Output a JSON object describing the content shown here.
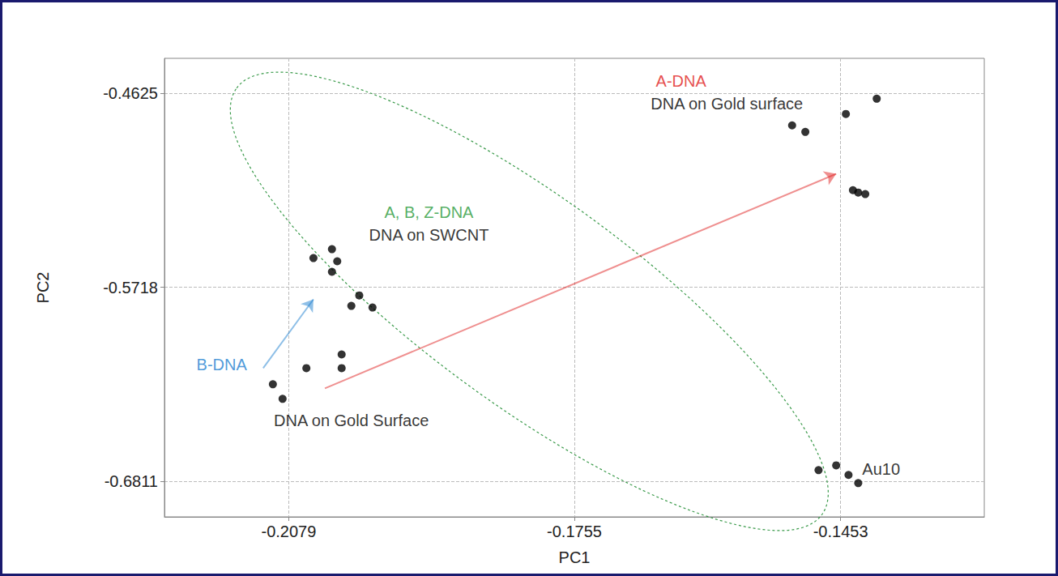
{
  "chart_data": {
    "type": "scatter",
    "x_label": "PC1",
    "y_label": "PC2",
    "color": "#000000",
    "x": [
      -0.1508,
      -0.1493,
      -0.1447,
      -0.1412,
      -0.1439,
      -0.1433,
      -0.1425,
      -0.2051,
      -0.203,
      -0.2024,
      -0.203,
      -0.1999,
      -0.2008,
      -0.1984,
      -0.2019,
      -0.2019,
      -0.2059,
      -0.2097,
      -0.2086,
      -0.1478,
      -0.1458,
      -0.1444,
      -0.1433
    ],
    "y": [
      -0.4807,
      -0.4844,
      -0.4743,
      -0.4657,
      -0.5172,
      -0.5185,
      -0.5194,
      -0.5554,
      -0.5504,
      -0.5572,
      -0.5631,
      -0.5764,
      -0.5823,
      -0.5832,
      -0.6096,
      -0.6173,
      -0.6173,
      -0.6264,
      -0.6346,
      -0.6747,
      -0.672,
      -0.6774,
      -0.682
    ],
    "xlim": [
      -0.222,
      -0.129
    ],
    "xticks": [
      -0.2079,
      -0.1755,
      -0.1453
    ],
    "ylim": [
      -0.701,
      -0.443
    ],
    "yticks": [
      -0.6811,
      -0.5718,
      -0.4625
    ],
    "grid": true,
    "annotations": [
      {
        "text": "A-DNA",
        "x": -0.1634,
        "y": -0.4557,
        "color": "#e02020"
      },
      {
        "text": "DNA on Gold surface",
        "x": -0.1582,
        "y": -0.4684,
        "color": "#000000"
      },
      {
        "text": "A, B, Z-DNA",
        "x": -0.192,
        "y": -0.5294,
        "color": "#2a9a3a"
      },
      {
        "text": "DNA on SWCNT",
        "x": -0.192,
        "y": -0.5422,
        "color": "#000000"
      },
      {
        "text": "B-DNA",
        "x": -0.2155,
        "y": -0.6151,
        "color": "#1e7fd0"
      },
      {
        "text": "DNA on Gold Surface",
        "x": -0.2008,
        "y": -0.6469,
        "color": "#000000"
      },
      {
        "text": "Au10",
        "x": -0.1407,
        "y": -0.6743,
        "color": "#000000"
      }
    ],
    "arrows": [
      {
        "x": [
          -0.2038,
          -0.1458
        ],
        "y": [
          -0.6287,
          -0.508
        ],
        "color": "#e02020"
      },
      {
        "x": [
          -0.2108,
          -0.2051
        ],
        "y": [
          -0.6173,
          -0.5786
        ],
        "color": "#1e7fd0"
      }
    ]
  }
}
